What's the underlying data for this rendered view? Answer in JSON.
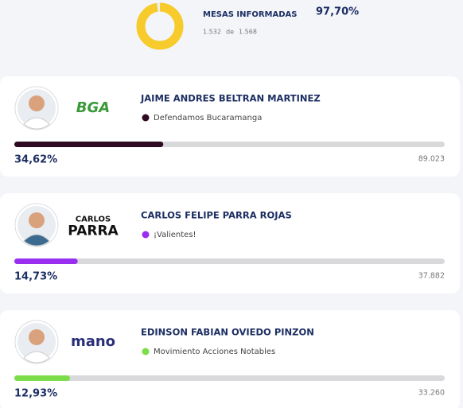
{
  "header": {
    "label": "MESAS INFORMADAS",
    "progress": 97.7,
    "progress_label": "97,70%",
    "counted": "1.532",
    "of": "de",
    "total": "1.568"
  },
  "candidates": [
    {
      "name": "JAIME ANDRES BELTRAN MARTINEZ",
      "party": "Defendamos Bucaramanga",
      "party_color": "#2e0b22",
      "logo": [
        "BGA"
      ],
      "share": 34.62,
      "share_label": "34,62%",
      "votes": "89.023"
    },
    {
      "name": "CARLOS FELIPE PARRA ROJAS",
      "party": "¡Valientes!",
      "party_color": "#9a2ef0",
      "logo": [
        "CARLOS",
        "PARRA"
      ],
      "share": 14.73,
      "share_label": "14,73%",
      "votes": "37.882"
    },
    {
      "name": "EDINSON FABIAN OVIEDO PINZON",
      "party": "Movimiento Acciones Notables",
      "party_color": "#7ddc4a",
      "logo": [
        "mano"
      ],
      "share": 12.93,
      "share_label": "12,93%",
      "votes": "33.260"
    }
  ]
}
